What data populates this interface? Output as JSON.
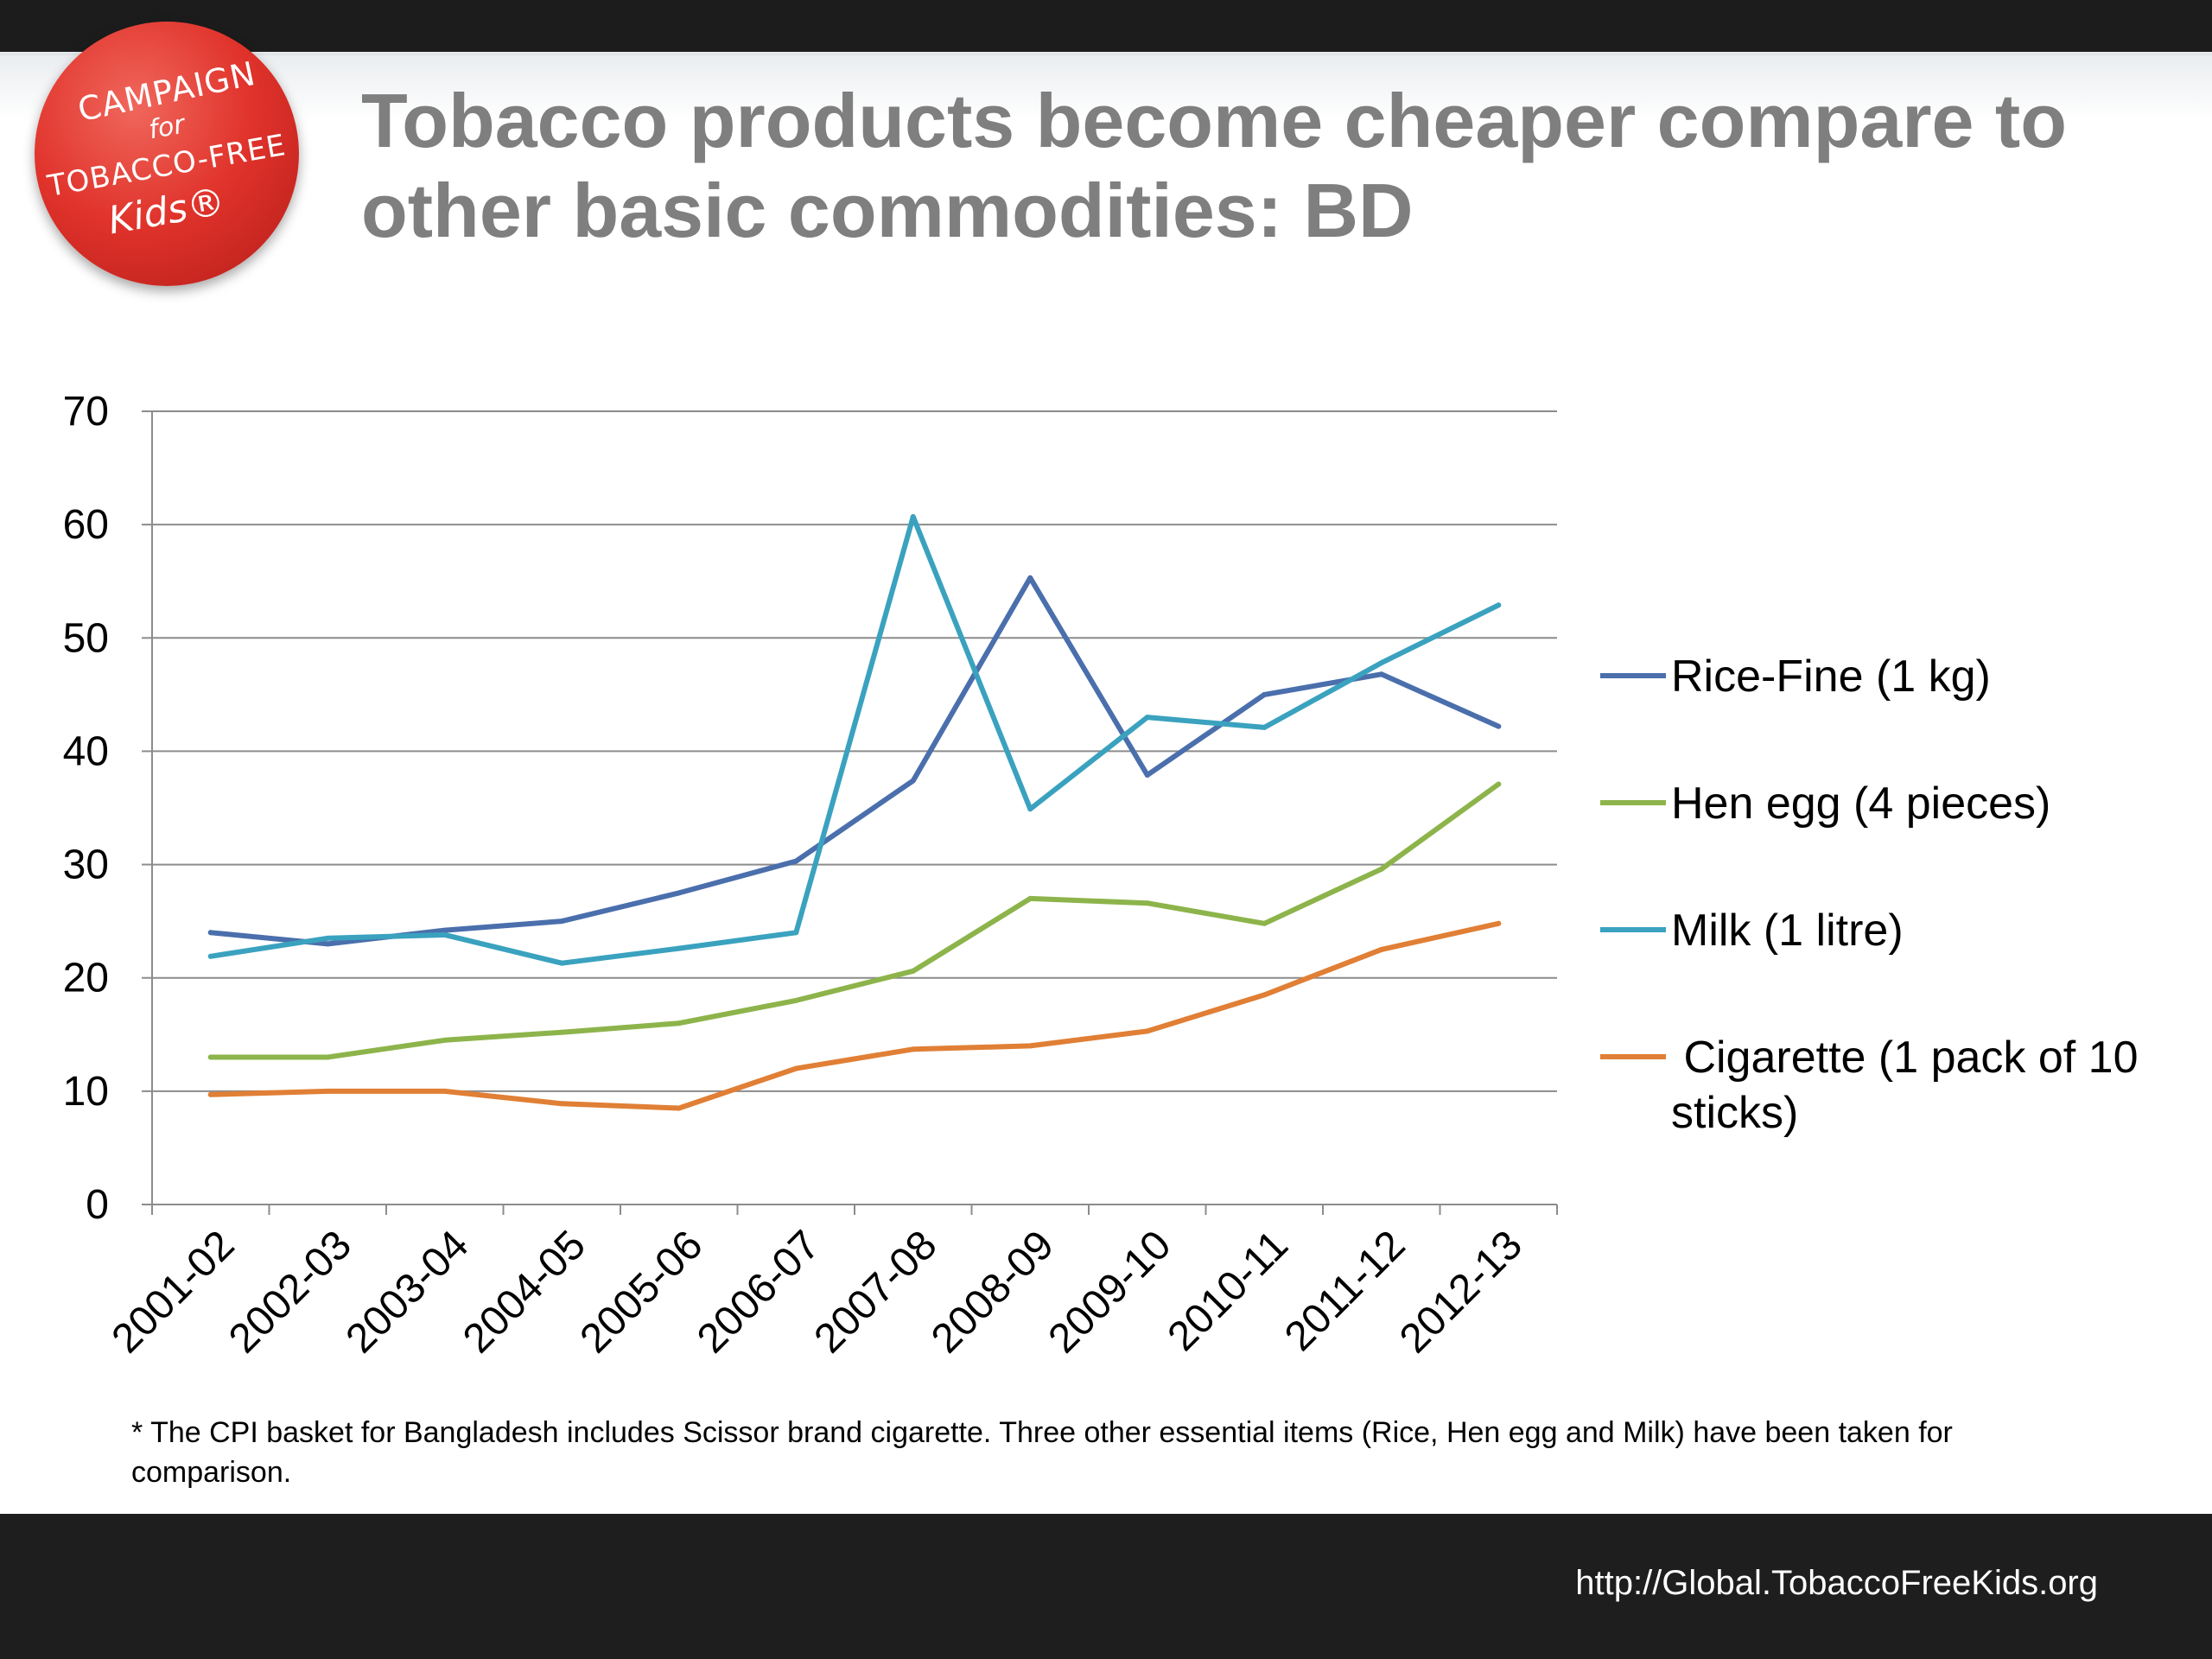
{
  "title": "Tobacco products become cheaper compare to other basic commodities: BD",
  "logo": {
    "line1": "CAMPAIGN",
    "line2": "for",
    "line3": "TOBACCO-FREE",
    "line4": "Kids®"
  },
  "footnote": "* The CPI basket for Bangladesh includes Scissor brand cigarette. Three other essential items (Rice, Hen egg and Milk) have been taken for comparison.",
  "url": "http://Global.TobaccoFreeKids.org",
  "chart_data": {
    "type": "line",
    "title": "",
    "xlabel": "",
    "ylabel": "",
    "ylim": [
      0,
      70
    ],
    "yticks": [
      0,
      10,
      20,
      30,
      40,
      50,
      60,
      70
    ],
    "grid": true,
    "legend_position": "right",
    "categories": [
      "2001-02",
      "2002-03",
      "2003-04",
      "2004-05",
      "2005-06",
      "2006-07",
      "2007-08",
      "2008-09",
      "2009-10",
      "2010-11",
      "2011-12",
      "2012-13"
    ],
    "series": [
      {
        "name": "Rice-Fine (1 kg)",
        "legend_lines": [
          "Rice-Fine (1 kg)"
        ],
        "color": "#4a6fac",
        "values": [
          24,
          23,
          24.2,
          25,
          27.5,
          30.3,
          37.4,
          55.3,
          37.9,
          45,
          46.8,
          42.2
        ]
      },
      {
        "name": "Hen egg (4 pieces)",
        "legend_lines": [
          "Hen egg (4 pieces)"
        ],
        "color": "#8db44b",
        "values": [
          13,
          13,
          14.5,
          15.2,
          16,
          18,
          20.6,
          27,
          26.6,
          24.8,
          29.6,
          37.1
        ]
      },
      {
        "name": "Milk (1 litre)",
        "legend_lines": [
          "Milk (1 litre)"
        ],
        "color": "#3aa2bf",
        "values": [
          21.9,
          23.5,
          23.8,
          21.3,
          22.6,
          24,
          60.7,
          34.9,
          43,
          42.1,
          47.8,
          52.9
        ]
      },
      {
        "name": " Cigarette (1 pack of 10 sticks)",
        "legend_lines": [
          " Cigarette (1 pack of 10",
          "sticks)"
        ],
        "color": "#e07f35",
        "values": [
          9.7,
          10,
          10,
          8.9,
          8.5,
          12,
          13.7,
          14,
          15.3,
          18.5,
          22.5,
          24.8
        ]
      }
    ]
  }
}
